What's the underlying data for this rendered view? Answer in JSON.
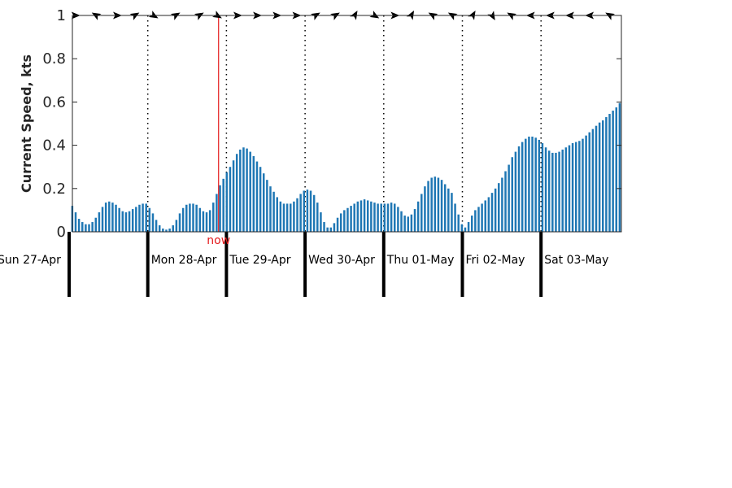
{
  "chart_data": {
    "type": "bar",
    "ylabel": "Current Speed, kts",
    "ylim": [
      0,
      1
    ],
    "yticks": [
      "0",
      "0.2",
      "0.4",
      "0.6",
      "0.8",
      "1"
    ],
    "bar_color": "#1f77b4",
    "now_color": "#e41a1c",
    "now_label": "now",
    "now_position_days": 1.9,
    "days": [
      "Sun 27-Apr",
      "Mon 28-Apr",
      "Tue 29-Apr",
      "Wed 30-Apr",
      "Thu 01-May",
      "Fri 02-May",
      "Sat 03-May"
    ],
    "x_start_day": 0.04,
    "x_end_day": 7.0,
    "values": [
      0.12,
      0.09,
      0.06,
      0.045,
      0.035,
      0.035,
      0.045,
      0.065,
      0.09,
      0.115,
      0.135,
      0.14,
      0.135,
      0.125,
      0.11,
      0.095,
      0.09,
      0.095,
      0.105,
      0.115,
      0.125,
      0.13,
      0.13,
      0.11,
      0.085,
      0.055,
      0.03,
      0.015,
      0.01,
      0.015,
      0.03,
      0.055,
      0.085,
      0.11,
      0.125,
      0.13,
      0.13,
      0.125,
      0.11,
      0.095,
      0.09,
      0.1,
      0.135,
      0.175,
      0.215,
      0.245,
      0.275,
      0.3,
      0.33,
      0.36,
      0.38,
      0.39,
      0.385,
      0.37,
      0.35,
      0.325,
      0.3,
      0.27,
      0.24,
      0.21,
      0.185,
      0.16,
      0.14,
      0.13,
      0.13,
      0.13,
      0.14,
      0.155,
      0.175,
      0.19,
      0.195,
      0.19,
      0.17,
      0.135,
      0.09,
      0.045,
      0.02,
      0.02,
      0.04,
      0.065,
      0.085,
      0.1,
      0.11,
      0.12,
      0.13,
      0.14,
      0.145,
      0.15,
      0.145,
      0.14,
      0.135,
      0.13,
      0.13,
      0.13,
      0.13,
      0.135,
      0.13,
      0.115,
      0.095,
      0.075,
      0.07,
      0.08,
      0.105,
      0.14,
      0.175,
      0.21,
      0.235,
      0.25,
      0.255,
      0.25,
      0.24,
      0.22,
      0.2,
      0.18,
      0.13,
      0.08,
      0.035,
      0.02,
      0.045,
      0.075,
      0.1,
      0.115,
      0.13,
      0.145,
      0.16,
      0.18,
      0.2,
      0.225,
      0.25,
      0.28,
      0.31,
      0.345,
      0.37,
      0.395,
      0.415,
      0.43,
      0.44,
      0.44,
      0.435,
      0.425,
      0.41,
      0.39,
      0.375,
      0.365,
      0.365,
      0.37,
      0.38,
      0.39,
      0.4,
      0.41,
      0.415,
      0.42,
      0.43,
      0.445,
      0.46,
      0.475,
      0.49,
      0.505,
      0.515,
      0.53,
      0.545,
      0.56,
      0.575,
      0.595
    ],
    "direction_markers": [
      {
        "day": 0.07,
        "bearing": 90
      },
      {
        "day": 0.35,
        "bearing": 300
      },
      {
        "day": 0.6,
        "bearing": 90
      },
      {
        "day": 0.83,
        "bearing": 60
      },
      {
        "day": 1.07,
        "bearing": 120
      },
      {
        "day": 1.35,
        "bearing": 60
      },
      {
        "day": 1.65,
        "bearing": 60
      },
      {
        "day": 1.88,
        "bearing": 120
      },
      {
        "day": 2.13,
        "bearing": 90
      },
      {
        "day": 2.38,
        "bearing": 90
      },
      {
        "day": 2.63,
        "bearing": 90
      },
      {
        "day": 2.88,
        "bearing": 90
      },
      {
        "day": 3.13,
        "bearing": 60
      },
      {
        "day": 3.38,
        "bearing": 60
      },
      {
        "day": 3.63,
        "bearing": 30
      },
      {
        "day": 3.88,
        "bearing": 120
      },
      {
        "day": 4.13,
        "bearing": 90
      },
      {
        "day": 4.35,
        "bearing": 30
      },
      {
        "day": 4.63,
        "bearing": 300
      },
      {
        "day": 4.88,
        "bearing": 300
      },
      {
        "day": 5.13,
        "bearing": 30
      },
      {
        "day": 5.38,
        "bearing": 150
      },
      {
        "day": 5.63,
        "bearing": 300
      },
      {
        "day": 5.88,
        "bearing": 270
      },
      {
        "day": 6.13,
        "bearing": 270
      },
      {
        "day": 6.38,
        "bearing": 270
      },
      {
        "day": 6.63,
        "bearing": 270
      },
      {
        "day": 6.88,
        "bearing": 300
      }
    ]
  }
}
